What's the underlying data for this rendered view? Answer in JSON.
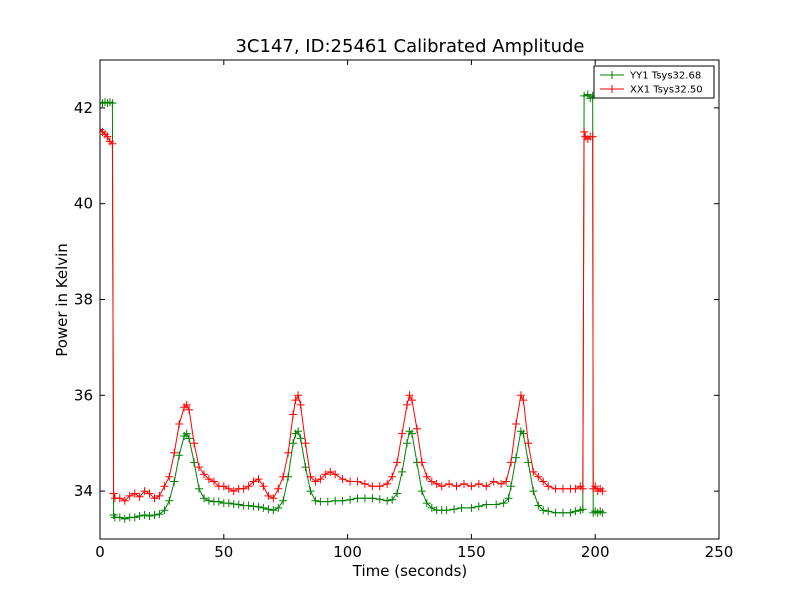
{
  "chart_data": {
    "type": "line",
    "title": "3C147, ID:25461 Calibrated Amplitude",
    "xlabel": "Time (seconds)",
    "ylabel": "Power in Kelvin",
    "xlim": [
      0,
      250
    ],
    "ylim": [
      33,
      43
    ],
    "x_ticks": [
      0,
      50,
      100,
      150,
      200,
      250
    ],
    "y_ticks": [
      34,
      36,
      38,
      40,
      42
    ],
    "grid": false,
    "legend_position": "top-right",
    "marker": "+",
    "series": [
      {
        "name": "YY1 Tsys32.68",
        "color": "#008000",
        "points": [
          [
            0,
            42.1
          ],
          [
            1,
            42.1
          ],
          [
            2,
            42.12
          ],
          [
            3,
            42.1
          ],
          [
            4,
            42.12
          ],
          [
            5,
            42.1
          ],
          [
            5.5,
            33.5
          ],
          [
            6,
            33.45
          ],
          [
            8,
            33.45
          ],
          [
            10,
            33.42
          ],
          [
            12,
            33.45
          ],
          [
            14,
            33.45
          ],
          [
            16,
            33.48
          ],
          [
            18,
            33.5
          ],
          [
            20,
            33.48
          ],
          [
            22,
            33.5
          ],
          [
            24,
            33.52
          ],
          [
            26,
            33.6
          ],
          [
            28,
            33.8
          ],
          [
            30,
            34.2
          ],
          [
            32,
            34.75
          ],
          [
            34,
            35.15
          ],
          [
            35,
            35.2
          ],
          [
            36,
            35.1
          ],
          [
            38,
            34.6
          ],
          [
            40,
            34.05
          ],
          [
            42,
            33.85
          ],
          [
            44,
            33.8
          ],
          [
            46,
            33.78
          ],
          [
            48,
            33.78
          ],
          [
            50,
            33.75
          ],
          [
            52,
            33.75
          ],
          [
            54,
            33.73
          ],
          [
            56,
            33.72
          ],
          [
            58,
            33.7
          ],
          [
            60,
            33.7
          ],
          [
            62,
            33.68
          ],
          [
            64,
            33.67
          ],
          [
            66,
            33.65
          ],
          [
            68,
            33.62
          ],
          [
            70,
            33.6
          ],
          [
            72,
            33.65
          ],
          [
            74,
            33.8
          ],
          [
            76,
            34.3
          ],
          [
            78,
            35.0
          ],
          [
            79,
            35.2
          ],
          [
            80,
            35.25
          ],
          [
            81,
            35.1
          ],
          [
            83,
            34.5
          ],
          [
            85,
            34.0
          ],
          [
            87,
            33.8
          ],
          [
            89,
            33.78
          ],
          [
            92,
            33.78
          ],
          [
            95,
            33.8
          ],
          [
            98,
            33.8
          ],
          [
            101,
            33.82
          ],
          [
            104,
            33.85
          ],
          [
            107,
            33.85
          ],
          [
            110,
            33.85
          ],
          [
            113,
            33.83
          ],
          [
            116,
            33.8
          ],
          [
            118,
            33.82
          ],
          [
            120,
            33.95
          ],
          [
            122,
            34.4
          ],
          [
            124,
            35.0
          ],
          [
            125,
            35.25
          ],
          [
            126,
            35.2
          ],
          [
            128,
            34.6
          ],
          [
            130,
            34.0
          ],
          [
            132,
            33.75
          ],
          [
            134,
            33.65
          ],
          [
            136,
            33.6
          ],
          [
            138,
            33.6
          ],
          [
            140,
            33.6
          ],
          [
            143,
            33.62
          ],
          [
            146,
            33.65
          ],
          [
            150,
            33.65
          ],
          [
            153,
            33.68
          ],
          [
            156,
            33.72
          ],
          [
            160,
            33.72
          ],
          [
            163,
            33.75
          ],
          [
            165,
            33.85
          ],
          [
            166,
            34.1
          ],
          [
            168,
            34.7
          ],
          [
            170,
            35.25
          ],
          [
            171,
            35.2
          ],
          [
            173,
            34.6
          ],
          [
            175,
            34.0
          ],
          [
            177,
            33.7
          ],
          [
            179,
            33.6
          ],
          [
            181,
            33.58
          ],
          [
            184,
            33.55
          ],
          [
            187,
            33.55
          ],
          [
            190,
            33.55
          ],
          [
            192,
            33.58
          ],
          [
            194,
            33.6
          ],
          [
            195,
            33.62
          ],
          [
            195.5,
            42.25
          ],
          [
            197,
            42.28
          ],
          [
            198,
            42.2
          ],
          [
            199,
            42.25
          ],
          [
            199.2,
            33.55
          ],
          [
            200,
            33.58
          ],
          [
            201,
            33.55
          ],
          [
            202,
            33.58
          ],
          [
            203,
            33.55
          ]
        ]
      },
      {
        "name": "XX1 Tsys32.50",
        "color": "#ff0000",
        "points": [
          [
            0,
            41.55
          ],
          [
            1,
            41.5
          ],
          [
            2,
            41.45
          ],
          [
            3,
            41.4
          ],
          [
            4,
            41.3
          ],
          [
            5,
            41.25
          ],
          [
            5.5,
            33.95
          ],
          [
            6,
            33.85
          ],
          [
            8,
            33.85
          ],
          [
            10,
            33.8
          ],
          [
            12,
            33.9
          ],
          [
            14,
            33.95
          ],
          [
            16,
            33.88
          ],
          [
            18,
            34.0
          ],
          [
            20,
            33.95
          ],
          [
            22,
            33.85
          ],
          [
            24,
            33.9
          ],
          [
            26,
            34.1
          ],
          [
            28,
            34.3
          ],
          [
            30,
            34.8
          ],
          [
            32,
            35.4
          ],
          [
            34,
            35.75
          ],
          [
            35,
            35.8
          ],
          [
            36,
            35.7
          ],
          [
            38,
            35.0
          ],
          [
            40,
            34.5
          ],
          [
            42,
            34.35
          ],
          [
            44,
            34.25
          ],
          [
            46,
            34.2
          ],
          [
            48,
            34.1
          ],
          [
            50,
            34.1
          ],
          [
            52,
            34.05
          ],
          [
            54,
            34.0
          ],
          [
            56,
            34.05
          ],
          [
            58,
            34.05
          ],
          [
            60,
            34.1
          ],
          [
            62,
            34.2
          ],
          [
            64,
            34.25
          ],
          [
            66,
            34.1
          ],
          [
            68,
            33.9
          ],
          [
            70,
            33.85
          ],
          [
            72,
            34.05
          ],
          [
            74,
            34.3
          ],
          [
            76,
            34.8
          ],
          [
            78,
            35.6
          ],
          [
            79,
            35.9
          ],
          [
            80,
            36.0
          ],
          [
            81,
            35.8
          ],
          [
            83,
            35.0
          ],
          [
            85,
            34.3
          ],
          [
            87,
            34.2
          ],
          [
            89,
            34.25
          ],
          [
            91,
            34.35
          ],
          [
            93,
            34.4
          ],
          [
            95,
            34.35
          ],
          [
            98,
            34.25
          ],
          [
            101,
            34.2
          ],
          [
            104,
            34.2
          ],
          [
            107,
            34.15
          ],
          [
            110,
            34.1
          ],
          [
            113,
            34.1
          ],
          [
            116,
            34.15
          ],
          [
            118,
            34.3
          ],
          [
            120,
            34.6
          ],
          [
            122,
            35.2
          ],
          [
            124,
            35.8
          ],
          [
            125,
            36.0
          ],
          [
            126,
            35.9
          ],
          [
            128,
            35.3
          ],
          [
            130,
            34.6
          ],
          [
            132,
            34.3
          ],
          [
            134,
            34.2
          ],
          [
            136,
            34.15
          ],
          [
            138,
            34.1
          ],
          [
            141,
            34.15
          ],
          [
            144,
            34.1
          ],
          [
            147,
            34.15
          ],
          [
            150,
            34.1
          ],
          [
            153,
            34.15
          ],
          [
            156,
            34.1
          ],
          [
            159,
            34.2
          ],
          [
            162,
            34.15
          ],
          [
            164,
            34.2
          ],
          [
            166,
            34.6
          ],
          [
            168,
            35.4
          ],
          [
            170,
            36.0
          ],
          [
            171,
            35.9
          ],
          [
            173,
            35.0
          ],
          [
            175,
            34.4
          ],
          [
            177,
            34.3
          ],
          [
            179,
            34.2
          ],
          [
            181,
            34.1
          ],
          [
            184,
            34.05
          ],
          [
            187,
            34.05
          ],
          [
            190,
            34.05
          ],
          [
            192,
            34.05
          ],
          [
            194,
            34.1
          ],
          [
            195,
            34.05
          ],
          [
            195.5,
            41.5
          ],
          [
            196,
            41.4
          ],
          [
            197,
            41.35
          ],
          [
            198,
            41.4
          ],
          [
            199,
            41.4
          ],
          [
            199.2,
            34.05
          ],
          [
            200,
            34.1
          ],
          [
            201,
            34.0
          ],
          [
            202,
            34.05
          ],
          [
            203,
            34.0
          ]
        ]
      }
    ]
  }
}
